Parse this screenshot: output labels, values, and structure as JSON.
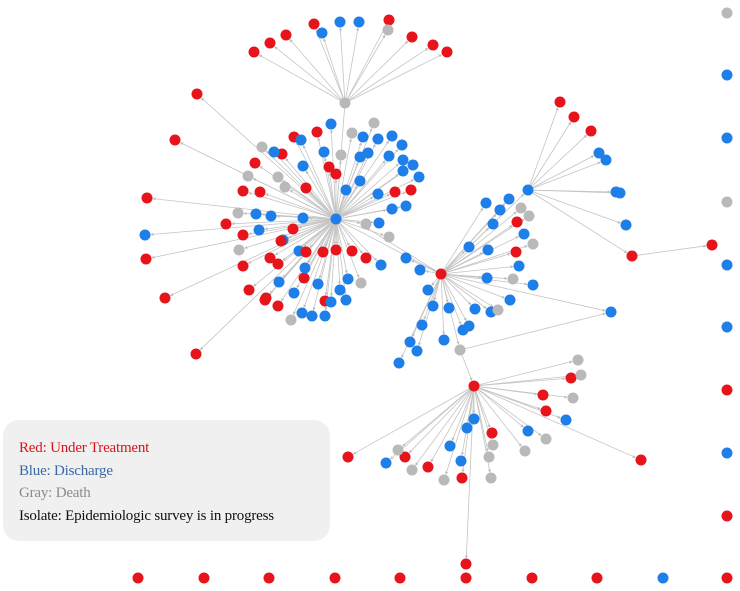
{
  "legend": {
    "red": "Red: Under Treatment",
    "blue": "Blue: Discharge",
    "gray": "Gray: Death",
    "isolate": "Isolate: Epidemiologic survey is in progress"
  },
  "colors": {
    "red": "#e8141b",
    "blue": "#1f7fe8",
    "gray": "#b9b9b9",
    "edge": "#c4c4c4",
    "legend_red": "#d8131b",
    "legend_blue": "#3b68a5",
    "legend_gray": "#8b8b8b",
    "legend_black": "#111111",
    "legend_bg": "#f0f0f0"
  }
}
